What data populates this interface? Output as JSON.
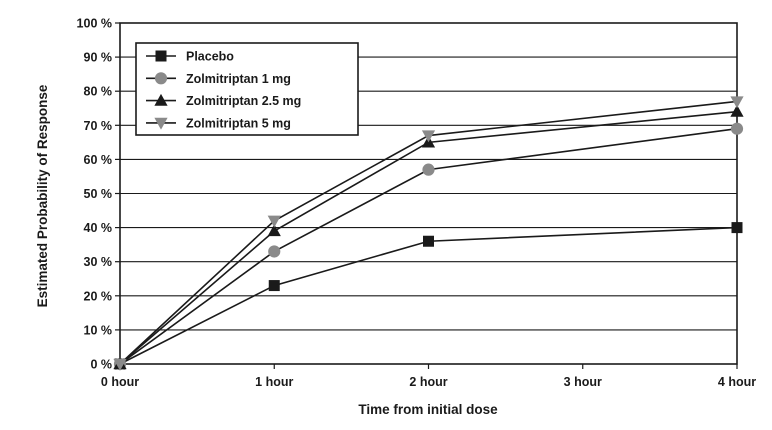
{
  "chart_data": {
    "type": "line",
    "title": "",
    "xlabel": "Time from initial dose",
    "ylabel": "Estimated Probability of Response",
    "x": [
      0,
      1,
      2,
      3,
      4
    ],
    "x_tick_labels": [
      "0 hour",
      "1 hour",
      "2 hour",
      "3 hour",
      "4 hour"
    ],
    "ylim": [
      0,
      100
    ],
    "y_tick_labels": [
      "0 %",
      "10 %",
      "20 %",
      "30 %",
      "40 %",
      "50 %",
      "60 %",
      "70 %",
      "80 %",
      "90 %",
      "100 %"
    ],
    "grid": "horizontal",
    "legend_position": "top-left",
    "series": [
      {
        "name": "Placebo",
        "marker": "square",
        "color": "#1a1a1a",
        "points": [
          [
            0,
            0
          ],
          [
            1,
            23
          ],
          [
            2,
            36
          ],
          [
            4,
            40
          ]
        ]
      },
      {
        "name": "Zolmitriptan 1 mg",
        "marker": "circle",
        "color": "#8a8a8a",
        "points": [
          [
            0,
            0
          ],
          [
            1,
            33
          ],
          [
            2,
            57
          ],
          [
            4,
            69
          ]
        ]
      },
      {
        "name": "Zolmitriptan 2.5 mg",
        "marker": "triangle-up",
        "color": "#1a1a1a",
        "points": [
          [
            0,
            0
          ],
          [
            1,
            39
          ],
          [
            2,
            65
          ],
          [
            4,
            74
          ]
        ]
      },
      {
        "name": "Zolmitriptan 5 mg",
        "marker": "triangle-down",
        "color": "#8a8a8a",
        "points": [
          [
            0,
            0
          ],
          [
            1,
            42
          ],
          [
            2,
            67
          ],
          [
            4,
            77
          ]
        ]
      }
    ]
  }
}
